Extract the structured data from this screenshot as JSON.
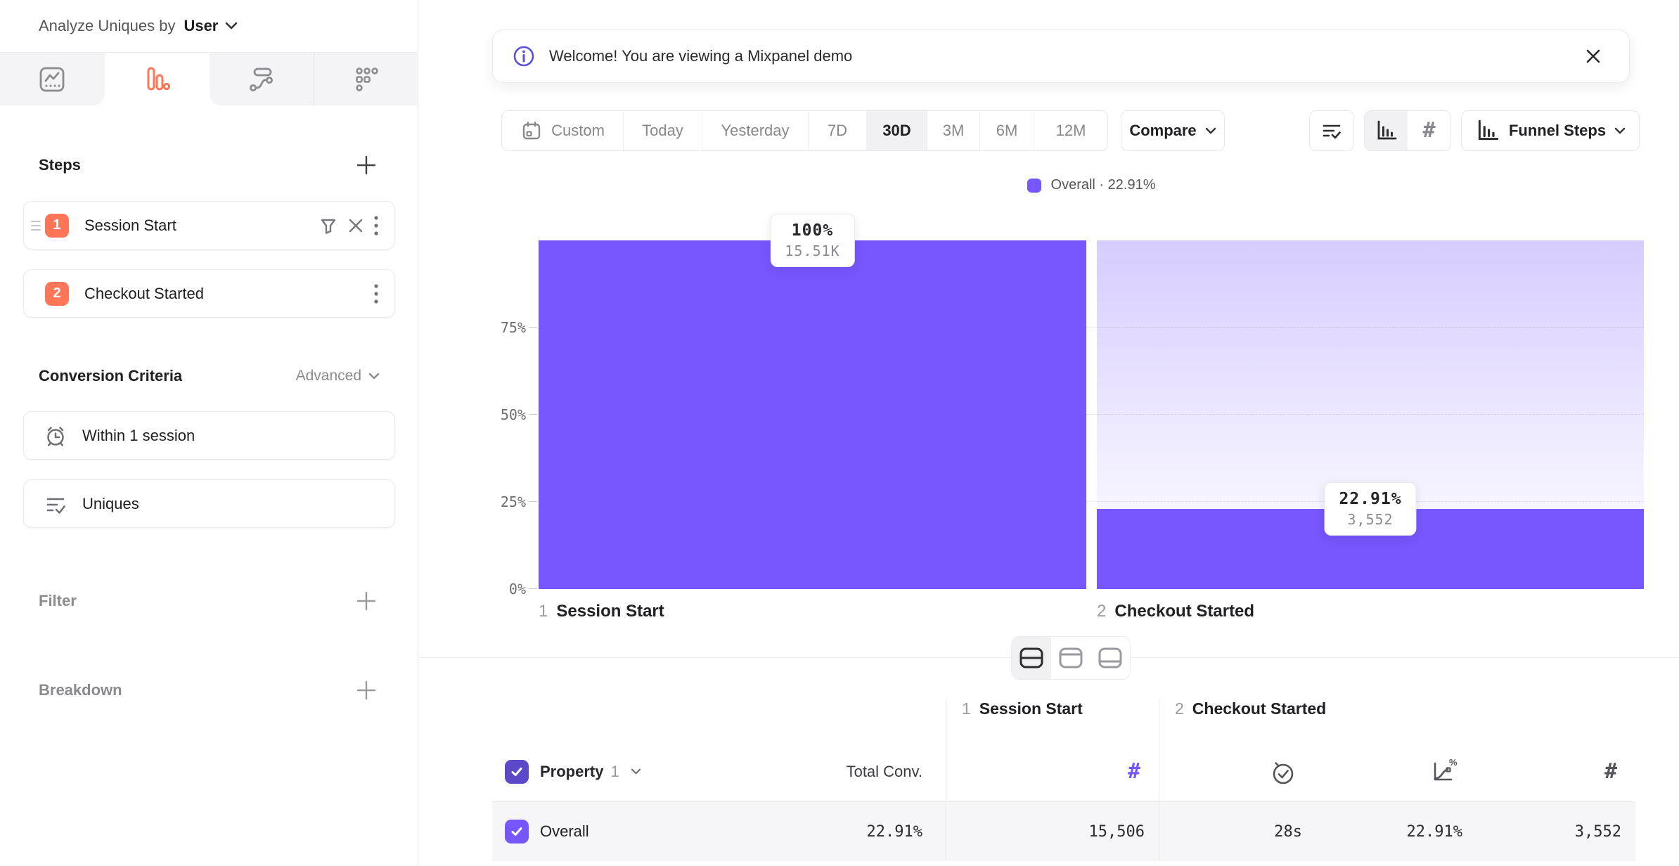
{
  "theme": {
    "purple": "#7856FF",
    "purple_dark": "#5B49C7",
    "orange": "#FF7557",
    "text_dark": "#1F1F24",
    "text_gray": "#8A8A90",
    "border": "#E7E7EA"
  },
  "glyphs": {
    "hash": "#"
  },
  "sidebar": {
    "analyze": {
      "prefix": "Analyze Uniques by",
      "value": "User"
    },
    "tabs": [
      {
        "icon": "insights-icon",
        "active": false
      },
      {
        "icon": "funnels-icon",
        "active": true
      },
      {
        "icon": "flows-icon",
        "active": false
      },
      {
        "icon": "retention-icon",
        "active": false
      }
    ],
    "steps": {
      "title": "Steps",
      "items": [
        {
          "number": "1",
          "label": "Session Start"
        },
        {
          "number": "2",
          "label": "Checkout Started"
        }
      ]
    },
    "conversion": {
      "title": "Conversion Criteria",
      "advanced": "Advanced",
      "window": "Within 1 session",
      "counting": "Uniques"
    },
    "filter_title": "Filter",
    "breakdown_title": "Breakdown"
  },
  "banner": {
    "message": "Welcome! You are viewing a Mixpanel demo"
  },
  "toolbar": {
    "ranges": [
      "Custom",
      "Today",
      "Yesterday",
      "7D",
      "30D",
      "3M",
      "6M",
      "12M"
    ],
    "selected_range": "30D",
    "compare": "Compare",
    "funnel_steps": "Funnel Steps"
  },
  "legend": {
    "text": "Overall · 22.91%"
  },
  "chart_data": {
    "type": "bar",
    "subtype": "funnel",
    "series_name": "Overall",
    "overall_conversion": "22.91%",
    "steps": [
      {
        "index": "1",
        "label": "Session Start",
        "conversion_pct": 100,
        "pct_label": "100%",
        "count": 15506,
        "count_label": "15.51K"
      },
      {
        "index": "2",
        "label": "Checkout Started",
        "conversion_pct": 22.91,
        "pct_label": "22.91%",
        "count": 3552,
        "count_label": "3,552"
      }
    ],
    "y_ticks": [
      "75%",
      "50%",
      "25%",
      "0%"
    ],
    "ylim": [
      0,
      100
    ],
    "grid": "dashed horizontal lines at 25%, 50%, 75%",
    "legend_position": "top-center"
  },
  "view_toggle": {
    "options": [
      "split-view",
      "chart-only",
      "table-only"
    ],
    "selected": "split-view"
  },
  "table": {
    "group_headers": [
      {
        "number": "1",
        "label": "Session Start"
      },
      {
        "number": "2",
        "label": "Checkout Started"
      }
    ],
    "property_header": {
      "label": "Property",
      "number": "1"
    },
    "total_conv_header": "Total Conv.",
    "row": {
      "name": "Overall",
      "total_conv": "22.91%",
      "session_start_count": "15,506",
      "time_to_convert": "28s",
      "conv_rate": "22.91%",
      "count": "3,552"
    }
  }
}
